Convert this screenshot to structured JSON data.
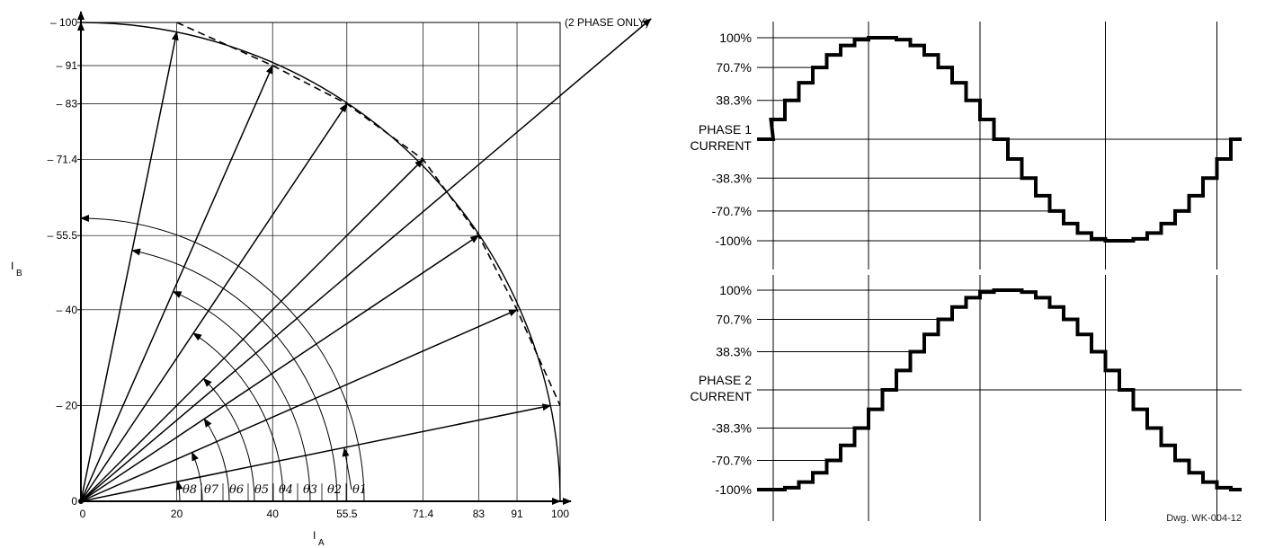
{
  "chart_data": [
    {
      "type": "vector-diagram",
      "xlabel": "I",
      "xlabel_sub": "A",
      "ylabel": "I",
      "ylabel_sub": "B",
      "xlim": [
        0,
        100
      ],
      "ylim": [
        0,
        100
      ],
      "x_ticks": [
        "0",
        "20",
        "40",
        "55.5",
        "71.4",
        "83",
        "91",
        "100"
      ],
      "y_ticks": [
        "0",
        "– 20",
        "– 40",
        "– 55.5",
        "– 71.4",
        "– 83",
        "– 91",
        "– 100"
      ],
      "tick_values": [
        0,
        20,
        40,
        55.5,
        71.4,
        83,
        91,
        100
      ],
      "annotation": "(2 PHASE ONLY)",
      "angle_labels": [
        "θ8",
        "θ7",
        "θ6",
        "θ5",
        "θ4",
        "θ3",
        "θ2",
        "θ1"
      ],
      "vectors": [
        {
          "x": 100,
          "y": 0
        },
        {
          "x": 98,
          "y": 20
        },
        {
          "x": 91,
          "y": 40
        },
        {
          "x": 83,
          "y": 55.5
        },
        {
          "x": 71.4,
          "y": 71.4
        },
        {
          "x": 55.5,
          "y": 83
        },
        {
          "x": 40,
          "y": 91
        },
        {
          "x": 20,
          "y": 98
        },
        {
          "x": 0,
          "y": 100
        },
        {
          "x": 100,
          "y": 100
        }
      ],
      "dashed_polygon": [
        {
          "x": 20,
          "y": 100
        },
        {
          "x": 40,
          "y": 91
        },
        {
          "x": 55.5,
          "y": 83
        },
        {
          "x": 71.4,
          "y": 71.4
        },
        {
          "x": 83,
          "y": 55.5
        },
        {
          "x": 91,
          "y": 40
        },
        {
          "x": 100,
          "y": 20
        }
      ]
    },
    {
      "type": "line",
      "step": true,
      "series": [
        {
          "name": "PHASE 1 CURRENT",
          "values": [
            0,
            19.5,
            38.3,
            55.6,
            70.7,
            83.1,
            92.4,
            98.1,
            100,
            100,
            98.1,
            92.4,
            83.1,
            70.7,
            55.6,
            38.3,
            19.5,
            0,
            -19.5,
            -38.3,
            -55.6,
            -70.7,
            -83.1,
            -92.4,
            -98.1,
            -100,
            -100,
            -98.1,
            -92.4,
            -83.1,
            -70.7,
            -55.6,
            -38.3,
            -19.5,
            0
          ]
        },
        {
          "name": "PHASE 2 CURRENT",
          "values": [
            -100,
            -100,
            -98.1,
            -92.4,
            -83.1,
            -70.7,
            -55.6,
            -38.3,
            -19.5,
            0,
            19.5,
            38.3,
            55.6,
            70.7,
            83.1,
            92.4,
            98.1,
            100,
            100,
            98.1,
            92.4,
            83.1,
            70.7,
            55.6,
            38.3,
            19.5,
            0,
            -19.5,
            -38.3,
            -55.6,
            -70.7,
            -83.1,
            -92.4,
            -98.1,
            -100
          ]
        }
      ],
      "y_levels": [
        {
          "label": "100%",
          "value": 100
        },
        {
          "label": "70.7%",
          "value": 70.7
        },
        {
          "label": "38.3%",
          "value": 38.3
        },
        {
          "label": "-38.3%",
          "value": -38.3
        },
        {
          "label": "-70.7%",
          "value": -70.7
        },
        {
          "label": "-100%",
          "value": -100
        }
      ],
      "label_line1": [
        "PHASE 1",
        "PHASE 2"
      ],
      "label_line2": [
        "CURRENT",
        "CURRENT"
      ],
      "vertical_markers": [
        0,
        8,
        16,
        25,
        33
      ],
      "drawing_number": "Dwg. WK-004-12"
    }
  ]
}
